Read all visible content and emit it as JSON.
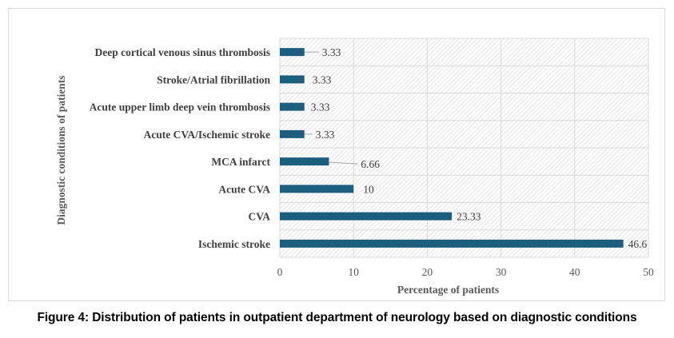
{
  "caption": "Figure 4: Distribution of patients in outpatient department of neurology based on diagnostic conditions",
  "colors": {
    "bar": "#1b5e7e",
    "grid": "#d9d9d9",
    "hatch": "#d0d0d0",
    "leader": "#a6a6a6"
  },
  "chart_data": {
    "type": "bar",
    "orientation": "horizontal",
    "title": "",
    "xlabel": "Percentage of patients",
    "ylabel": "Diagnostic conditions of patients",
    "xlim": [
      0,
      50
    ],
    "xticks": [
      0,
      10,
      20,
      30,
      40,
      50
    ],
    "grid": true,
    "legend": "none",
    "categories": [
      "Ischemic stroke",
      "CVA",
      "Acute CVA",
      "MCA infarct",
      "Acute CVA/Ischemic stroke",
      "Acute upper limb deep vein thrombosis",
      "Stroke/Atrial fibrillation",
      "Deep cortical venous sinus thrombosis"
    ],
    "values": [
      46.6,
      23.33,
      10,
      6.66,
      3.33,
      3.33,
      3.33,
      3.33
    ],
    "data_labels": [
      "46.6",
      "23.33",
      "10",
      "6.66",
      "3.33",
      "3.33",
      "3.33",
      "3.33"
    ]
  }
}
